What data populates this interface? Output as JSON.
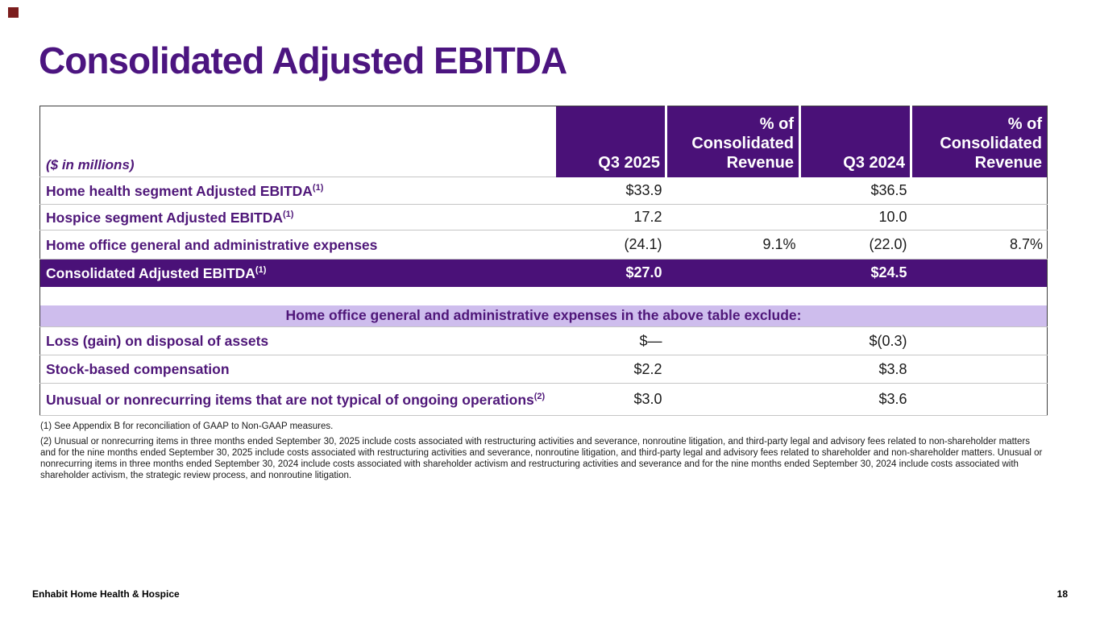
{
  "slide": {
    "title": "Consolidated Adjusted EBITDA",
    "footer_brand": "Enhabit Home Health & Hospice",
    "page_number": "18"
  },
  "colors": {
    "brand_purple_dark": "#4a1178",
    "brand_purple_text": "#4f1779",
    "banner_lavender": "#cebded",
    "accent_marker_red": "#7b1d1d"
  },
  "table": {
    "unit_label": "($ in millions)",
    "columns": [
      "Q3 2025",
      "% of\nConsolidated\nRevenue",
      "Q3 2024",
      "% of\nConsolidated\nRevenue"
    ],
    "rows": [
      {
        "label": "Home health segment Adjusted EBITDA",
        "footnote_ref": "(1)",
        "q3_2025": "$33.9",
        "pct_rev_2025": "",
        "q3_2024": "$36.5",
        "pct_rev_2024": ""
      },
      {
        "label": "Hospice segment Adjusted EBITDA",
        "footnote_ref": "(1)",
        "q3_2025": "17.2",
        "pct_rev_2025": "",
        "q3_2024": "10.0",
        "pct_rev_2024": ""
      },
      {
        "label": "Home office general and administrative expenses",
        "footnote_ref": "",
        "q3_2025": "(24.1)",
        "pct_rev_2025": "9.1%",
        "q3_2024": "(22.0)",
        "pct_rev_2024": "8.7%"
      },
      {
        "label": "Consolidated Adjusted EBITDA",
        "footnote_ref": "(1)",
        "q3_2025": "$27.0",
        "pct_rev_2025": "",
        "q3_2024": "$24.5",
        "pct_rev_2024": ""
      }
    ],
    "exclude_banner": "Home office general and administrative expenses in the above table exclude:",
    "exclude_rows": [
      {
        "label": "Loss (gain) on disposal of assets",
        "footnote_ref": "",
        "q3_2025": "$—",
        "pct_rev_2025": "",
        "q3_2024": "$(0.3)",
        "pct_rev_2024": ""
      },
      {
        "label": "Stock-based compensation",
        "footnote_ref": "",
        "q3_2025": "$2.2",
        "pct_rev_2025": "",
        "q3_2024": "$3.8",
        "pct_rev_2024": ""
      },
      {
        "label": "Unusual or nonrecurring items that are not typical of ongoing operations",
        "footnote_ref": "(2)",
        "q3_2025": "$3.0",
        "pct_rev_2025": "",
        "q3_2024": "$3.6",
        "pct_rev_2024": ""
      }
    ]
  },
  "footnotes": [
    "(1) See Appendix B for reconciliation of GAAP to Non-GAAP measures.",
    "(2) Unusual or nonrecurring items in three months ended September 30, 2025 include costs associated with restructuring activities and severance, nonroutine litigation, and third-party legal and advisory fees related to non-shareholder matters and for the nine months ended September 30, 2025 include costs associated with restructuring activities and severance, nonroutine litigation, and third-party legal and advisory fees related to shareholder and non-shareholder matters. Unusual or nonrecurring items in three months ended September 30, 2024 include costs associated with shareholder activism and restructuring activities and severance and for the nine months ended September 30, 2024 include costs associated with shareholder activism, the strategic review process, and nonroutine litigation."
  ]
}
